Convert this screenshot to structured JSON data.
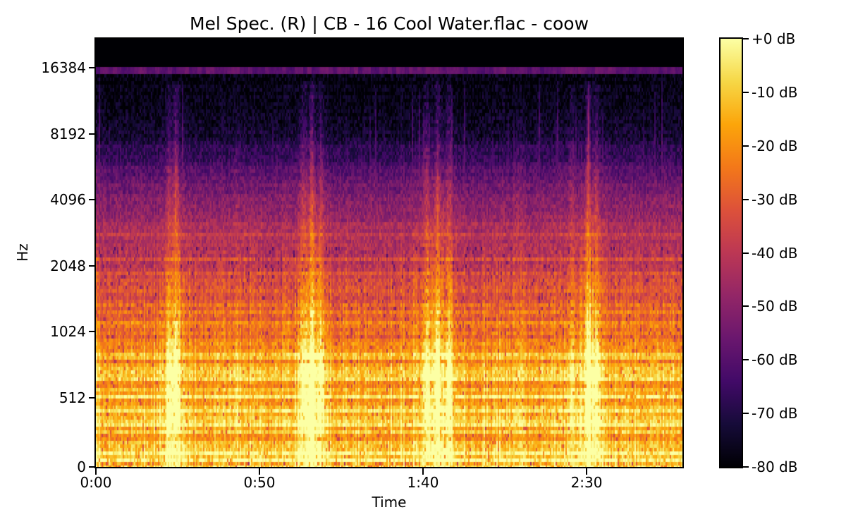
{
  "title": "Mel Spec. (R) | CB - 16 Cool Water.flac - coow",
  "chart_data": {
    "type": "spectrogram",
    "title": "Mel Spec. (R) | CB - 16 Cool Water.flac - coow",
    "xlabel": "Time",
    "ylabel": "Hz",
    "duration_s": 179.3,
    "x_ticks": [
      {
        "label": "0:00",
        "t": 0
      },
      {
        "label": "0:50",
        "t": 50
      },
      {
        "label": "1:40",
        "t": 100
      },
      {
        "label": "2:30",
        "t": 150
      }
    ],
    "y_ticks": [
      {
        "label": "0",
        "f": 0
      },
      {
        "label": "512",
        "f": 512
      },
      {
        "label": "1024",
        "f": 1024
      },
      {
        "label": "2048",
        "f": 2048
      },
      {
        "label": "4096",
        "f": 4096
      },
      {
        "label": "8192",
        "f": 8192
      },
      {
        "label": "16384",
        "f": 16384
      }
    ],
    "y_scale": {
      "type": "symlog-mel",
      "top_hz": 22050,
      "linear_max_hz": 512,
      "linear_frac": 0.1614,
      "octave_frac": 0.1542
    },
    "colorbar": {
      "tick_labels": [
        "+0 dB",
        "-10 dB",
        "-20 dB",
        "-30 dB",
        "-40 dB",
        "-50 dB",
        "-60 dB",
        "-70 dB",
        "-80 dB"
      ],
      "vmax_db": 0,
      "vmin_db": -80,
      "colormap": "inferno"
    },
    "colormap_stops": [
      [
        0.0,
        "#000004"
      ],
      [
        0.1,
        "#160b39"
      ],
      [
        0.2,
        "#420a68"
      ],
      [
        0.3,
        "#6a176e"
      ],
      [
        0.4,
        "#932667"
      ],
      [
        0.5,
        "#bc3754"
      ],
      [
        0.6,
        "#dd513a"
      ],
      [
        0.7,
        "#f37819"
      ],
      [
        0.8,
        "#fca50a"
      ],
      [
        0.9,
        "#f6d746"
      ],
      [
        1.0,
        "#fcffa4"
      ]
    ],
    "spectral_profile_db": [
      [
        0,
        -15
      ],
      [
        40,
        -11
      ],
      [
        90,
        -11
      ],
      [
        180,
        -13
      ],
      [
        350,
        -14
      ],
      [
        520,
        -13
      ],
      [
        700,
        -17
      ],
      [
        1000,
        -23
      ],
      [
        1500,
        -30
      ],
      [
        2200,
        -37
      ],
      [
        3200,
        -45
      ],
      [
        4500,
        -54
      ],
      [
        6000,
        -64
      ],
      [
        8000,
        -72
      ],
      [
        10500,
        -77
      ],
      [
        13000,
        -79
      ],
      [
        16900,
        -79.5
      ]
    ],
    "events": [
      {
        "t": 22.5,
        "strength": 0.5
      },
      {
        "t": 24.5,
        "strength": 1.0
      },
      {
        "t": 43.0,
        "strength": 0.25
      },
      {
        "t": 63.5,
        "strength": 0.7
      },
      {
        "t": 66.0,
        "strength": 1.0
      },
      {
        "t": 69.0,
        "strength": 0.55
      },
      {
        "t": 101.0,
        "strength": 0.7
      },
      {
        "t": 104.5,
        "strength": 0.9
      },
      {
        "t": 108.0,
        "strength": 0.6
      },
      {
        "t": 129.0,
        "strength": 0.25
      },
      {
        "t": 145.5,
        "strength": 0.45
      },
      {
        "t": 150.5,
        "strength": 1.0
      },
      {
        "t": 153.0,
        "strength": 0.6
      }
    ],
    "beat_period_s": 0.98,
    "stripe": {
      "f_lo_hz": 15100,
      "f_hi_hz": 16800,
      "db": -62
    },
    "cutoff_hz": 16800,
    "noise_seed": 7
  }
}
